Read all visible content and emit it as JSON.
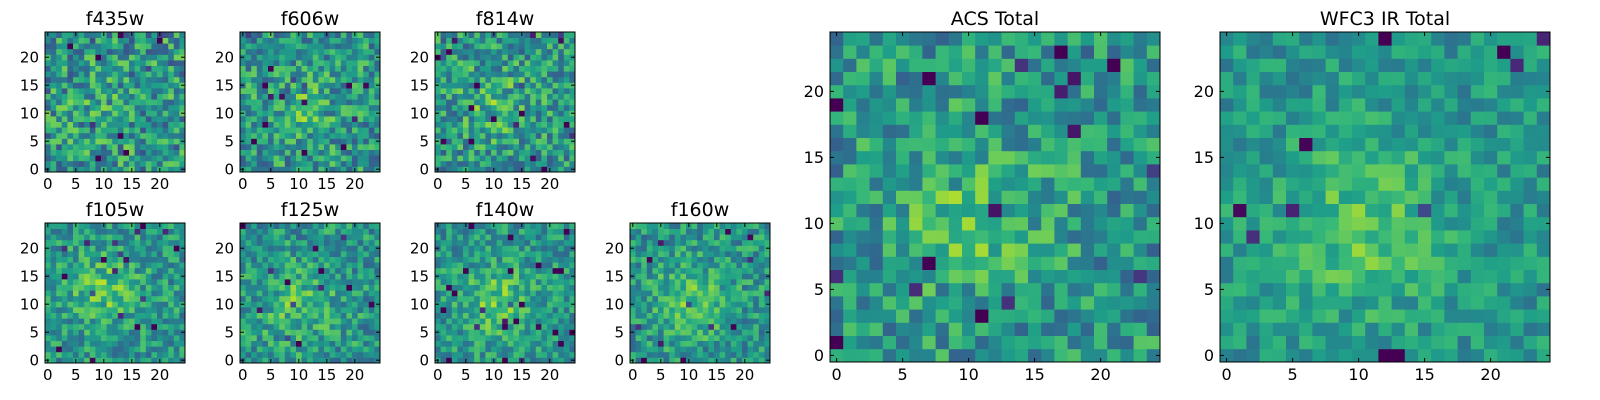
{
  "chart_data": [
    {
      "type": "heatmap",
      "title": "f435w",
      "size": 25,
      "xticks": [
        0,
        5,
        10,
        15,
        20
      ],
      "yticks": [
        0,
        5,
        10,
        15,
        20
      ],
      "seed": 11,
      "peak": 0.15,
      "noise": 0.55,
      "colormap": "viridis"
    },
    {
      "type": "heatmap",
      "title": "f606w",
      "size": 25,
      "xticks": [
        0,
        5,
        10,
        15,
        20
      ],
      "yticks": [
        0,
        5,
        10,
        15,
        20
      ],
      "seed": 23,
      "peak": 0.35,
      "noise": 0.5,
      "colormap": "viridis"
    },
    {
      "type": "heatmap",
      "title": "f814w",
      "size": 25,
      "xticks": [
        0,
        5,
        10,
        15,
        20
      ],
      "yticks": [
        0,
        5,
        10,
        15,
        20
      ],
      "seed": 37,
      "peak": 0.35,
      "noise": 0.5,
      "colormap": "viridis"
    },
    {
      "type": "heatmap",
      "title": "f105w",
      "size": 25,
      "xticks": [
        0,
        5,
        10,
        15,
        20
      ],
      "yticks": [
        0,
        5,
        10,
        15,
        20
      ],
      "seed": 41,
      "peak": 0.5,
      "noise": 0.4,
      "colormap": "viridis"
    },
    {
      "type": "heatmap",
      "title": "f125w",
      "size": 25,
      "xticks": [
        0,
        5,
        10,
        15,
        20
      ],
      "yticks": [
        0,
        5,
        10,
        15,
        20
      ],
      "seed": 53,
      "peak": 0.45,
      "noise": 0.42,
      "colormap": "viridis"
    },
    {
      "type": "heatmap",
      "title": "f140w",
      "size": 25,
      "xticks": [
        0,
        5,
        10,
        15,
        20
      ],
      "yticks": [
        0,
        5,
        10,
        15,
        20
      ],
      "seed": 67,
      "peak": 0.55,
      "noise": 0.38,
      "colormap": "viridis"
    },
    {
      "type": "heatmap",
      "title": "f160w",
      "size": 25,
      "xticks": [
        0,
        5,
        10,
        15,
        20
      ],
      "yticks": [
        0,
        5,
        10,
        15,
        20
      ],
      "seed": 79,
      "peak": 0.55,
      "noise": 0.4,
      "colormap": "viridis"
    },
    {
      "type": "heatmap",
      "title": "ACS Total",
      "size": 25,
      "xticks": [
        0,
        5,
        10,
        15,
        20
      ],
      "yticks": [
        0,
        5,
        10,
        15,
        20
      ],
      "seed": 89,
      "peak": 0.4,
      "noise": 0.45,
      "colormap": "viridis"
    },
    {
      "type": "heatmap",
      "title": "WFC3 IR Total",
      "size": 25,
      "xticks": [
        0,
        5,
        10,
        15,
        20
      ],
      "yticks": [
        0,
        5,
        10,
        15,
        20
      ],
      "seed": 97,
      "peak": 0.55,
      "noise": 0.3,
      "colormap": "viridis"
    }
  ]
}
